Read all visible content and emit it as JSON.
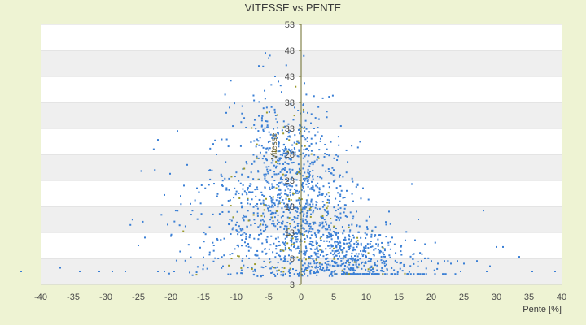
{
  "chart_data": {
    "type": "scatter",
    "title": "VITESSE vs PENTE",
    "xlabel": "Pente [%]",
    "ylabel": "Vitesse",
    "xlim": [
      -40,
      40
    ],
    "ylim": [
      3,
      53
    ],
    "xticks": [
      -40,
      -35,
      -30,
      -25,
      -20,
      -15,
      -10,
      -5,
      0,
      5,
      10,
      15,
      20,
      25,
      30,
      35,
      40
    ],
    "yticks": [
      3,
      8,
      13,
      18,
      23,
      28,
      33,
      38,
      43,
      48,
      53
    ],
    "grid": "horizontal bands",
    "legend": "none",
    "colors": {
      "points": "#3a7fd5",
      "points_alt": "#9a9a2a",
      "axis": "#6b6b2a",
      "band": "#efefef",
      "plot_bg": "#ffffff",
      "page_bg": "#eef3d3"
    },
    "clusters": [
      {
        "cx": -2,
        "cy": 20,
        "sx": 4.2,
        "sy": 9,
        "n": 900
      },
      {
        "cx": 8,
        "cy": 9,
        "sx": 5,
        "sy": 3,
        "n": 500
      },
      {
        "cx": -10,
        "cy": 14,
        "sx": 6,
        "sy": 7,
        "n": 180
      },
      {
        "cx": 3,
        "cy": 14,
        "sx": 3,
        "sy": 6,
        "n": 200
      }
    ],
    "points": [
      [
        -43,
        5.5
      ],
      [
        -37,
        6.2
      ],
      [
        -34,
        5.5
      ],
      [
        -31,
        5.5
      ],
      [
        -29,
        5.5
      ],
      [
        -27,
        5.5
      ],
      [
        -25,
        10.5
      ],
      [
        -24,
        12
      ],
      [
        -22,
        5.5
      ],
      [
        -22,
        30.8
      ],
      [
        -21,
        20.2
      ],
      [
        -21,
        5.5
      ],
      [
        -20.5,
        14.5
      ],
      [
        -20,
        12.3
      ],
      [
        -19.5,
        5.5
      ],
      [
        -19,
        32.5
      ],
      [
        -18.5,
        20
      ],
      [
        -18,
        22
      ],
      [
        -17.5,
        26
      ],
      [
        -17,
        18.5
      ],
      [
        -16,
        21.5
      ],
      [
        -15,
        8.2
      ],
      [
        -14,
        25
      ],
      [
        -13.5,
        30
      ],
      [
        -13,
        28
      ],
      [
        -12,
        6.5
      ],
      [
        -11.5,
        36
      ],
      [
        -11,
        37
      ],
      [
        -6.5,
        45
      ],
      [
        -5.5,
        47.5
      ],
      [
        -5,
        46.5
      ],
      [
        -4.8,
        47
      ],
      [
        -4,
        43
      ],
      [
        -3.5,
        42
      ],
      [
        -3,
        40
      ],
      [
        -1,
        37
      ],
      [
        0.2,
        5.5
      ],
      [
        0.3,
        37.5
      ],
      [
        0.5,
        41.7
      ],
      [
        0.8,
        39.5
      ],
      [
        1,
        36
      ],
      [
        1.5,
        34
      ],
      [
        2,
        33
      ],
      [
        3,
        31
      ],
      [
        4,
        28
      ],
      [
        5,
        25
      ],
      [
        6,
        24
      ],
      [
        7,
        21
      ],
      [
        8,
        19
      ],
      [
        8.5,
        17
      ],
      [
        9.5,
        21.5
      ],
      [
        10.5,
        16
      ],
      [
        12,
        12.5
      ],
      [
        13,
        15
      ],
      [
        13.5,
        17
      ],
      [
        14,
        12
      ],
      [
        17,
        22.3
      ],
      [
        17.5,
        11.5
      ],
      [
        18,
        15.5
      ],
      [
        18.5,
        7.5
      ],
      [
        19,
        8
      ],
      [
        20,
        7.5
      ],
      [
        21,
        7
      ],
      [
        22,
        7.5
      ],
      [
        23,
        7
      ],
      [
        24,
        7.5
      ],
      [
        24.5,
        5.5
      ],
      [
        25,
        7
      ],
      [
        27,
        7.5
      ],
      [
        28,
        17.2
      ],
      [
        28.5,
        5.5
      ],
      [
        29,
        6.5
      ],
      [
        30,
        10.2
      ],
      [
        31,
        10.2
      ],
      [
        33.5,
        8.3
      ],
      [
        35.5,
        5.5
      ],
      [
        39,
        5.5
      ]
    ]
  }
}
